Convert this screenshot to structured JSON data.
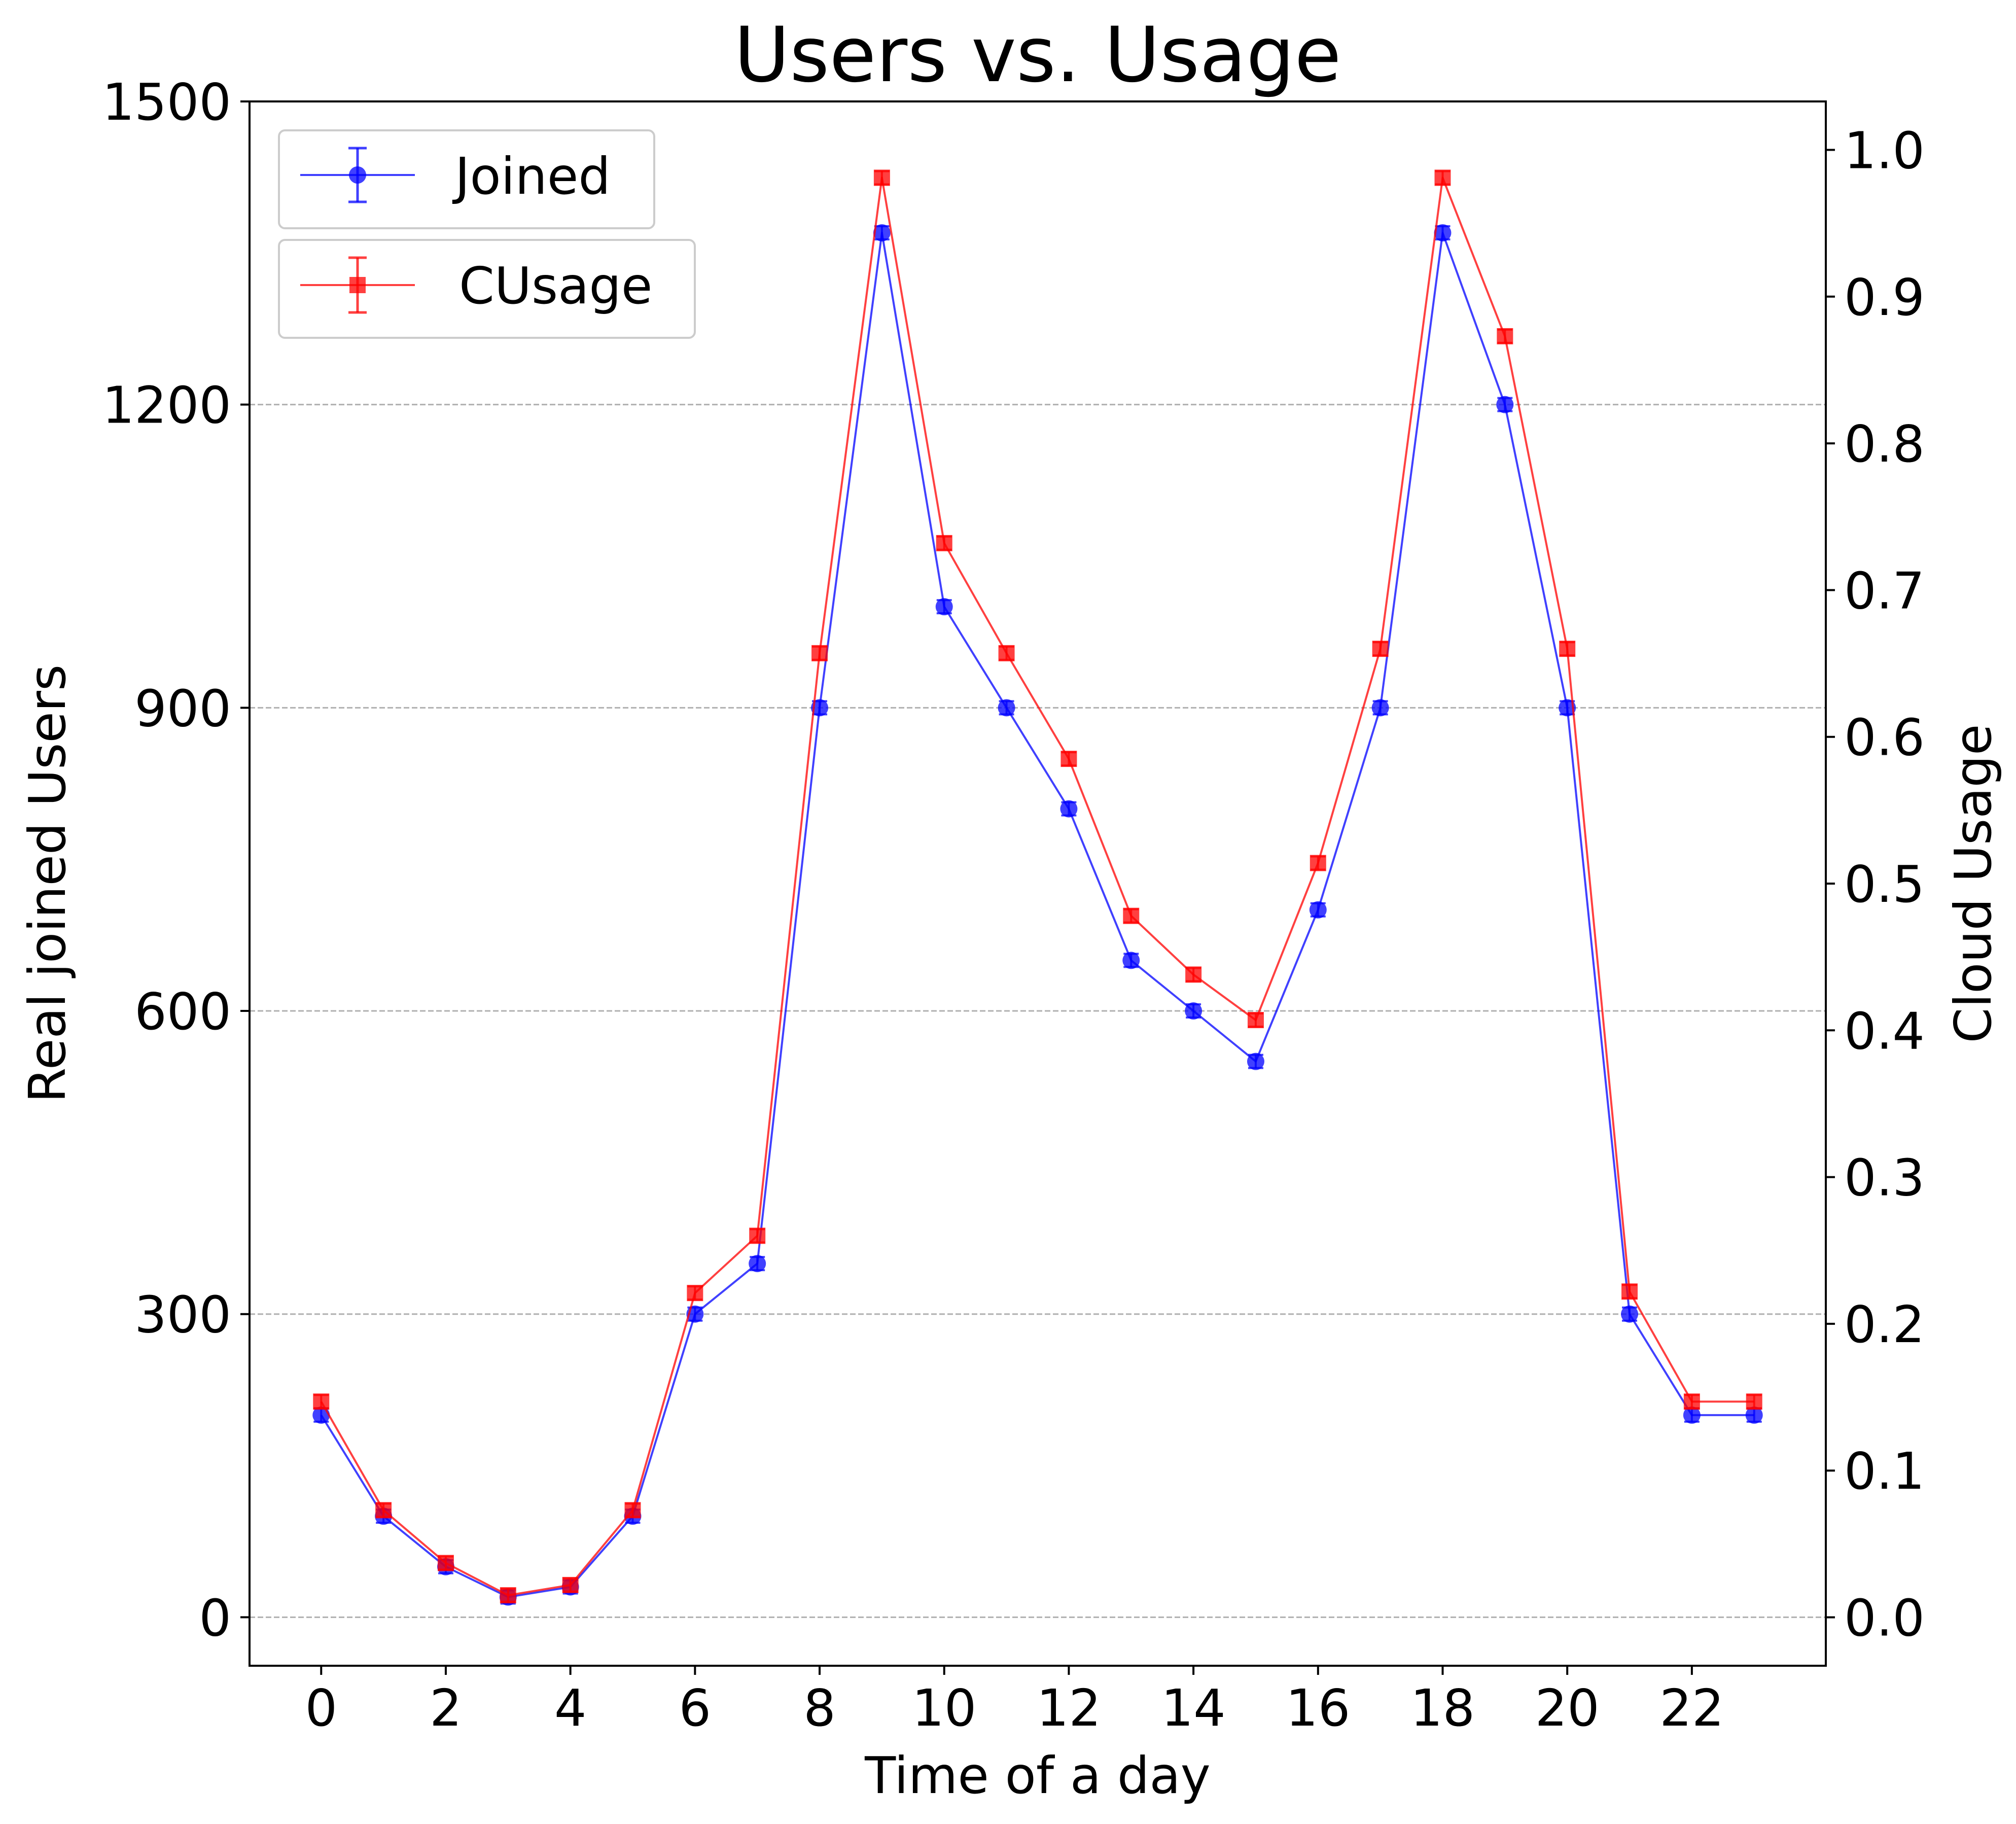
{
  "chart_data": {
    "type": "line",
    "title": "Users vs. Usage",
    "xlabel": "Time of a day",
    "ylabel": "Real joined Users",
    "y2label": "Cloud Usage",
    "x": [
      0,
      1,
      2,
      3,
      4,
      5,
      6,
      7,
      8,
      9,
      10,
      11,
      12,
      13,
      14,
      15,
      16,
      17,
      18,
      19,
      20,
      21,
      22,
      23
    ],
    "x_ticks": [
      0,
      2,
      4,
      6,
      8,
      10,
      12,
      14,
      16,
      18,
      20,
      22
    ],
    "xlim": [
      -1.15,
      24.15
    ],
    "ylim": [
      -48,
      1500
    ],
    "y_ticks": [
      0,
      300,
      600,
      900,
      1200,
      1500
    ],
    "y2lim": [
      -0.033,
      1.033
    ],
    "y2_ticks": [
      0.0,
      0.1,
      0.2,
      0.3,
      0.4,
      0.5,
      0.6,
      0.7,
      0.8,
      0.9,
      1.0
    ],
    "y2_tick_labels": [
      "0.0",
      "0.1",
      "0.2",
      "0.3",
      "0.4",
      "0.5",
      "0.6",
      "0.7",
      "0.8",
      "0.9",
      "1.0"
    ],
    "grid": "horizontal dashed at left-axis ticks",
    "legend": "top-left",
    "series": [
      {
        "name": "Joined",
        "axis": "left",
        "color": "#0000ff",
        "marker": "circle",
        "values": [
          200,
          100,
          50,
          20,
          30,
          100,
          300,
          350,
          900,
          1370,
          1000,
          900,
          800,
          650,
          600,
          550,
          700,
          900,
          1370,
          1200,
          900,
          300,
          200,
          200
        ]
      },
      {
        "name": "CUsage",
        "axis": "right",
        "color": "#ff0000",
        "marker": "square",
        "values": [
          0.147,
          0.073,
          0.037,
          0.015,
          0.022,
          0.073,
          0.221,
          0.26,
          0.657,
          0.981,
          0.732,
          0.657,
          0.585,
          0.478,
          0.438,
          0.407,
          0.514,
          0.66,
          0.981,
          0.873,
          0.66,
          0.222,
          0.147,
          0.147
        ]
      }
    ]
  }
}
